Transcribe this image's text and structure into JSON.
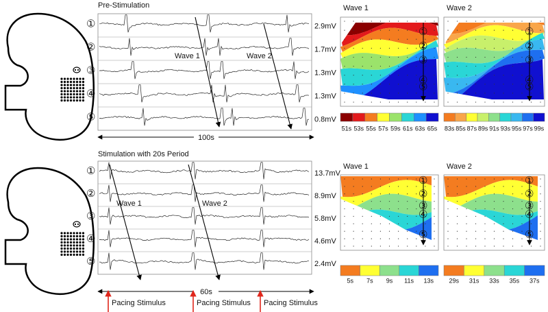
{
  "channels": [
    "①",
    "②",
    "③",
    "④",
    "⑤"
  ],
  "panels": [
    {
      "title": "Pre-Stimulation",
      "amplitudes": [
        "2.9mV",
        "1.7mV",
        "1.3mV",
        "1.3mV",
        "0.8mV"
      ],
      "wave_labels": [
        "Wave 1",
        "Wave 2"
      ],
      "time_scale": "100s",
      "maps": [
        {
          "title": "Wave 1",
          "legend": [
            "51s",
            "53s",
            "55s",
            "57s",
            "59s",
            "61s",
            "63s",
            "65s"
          ],
          "colors": [
            "#8b0000",
            "#e31a1c",
            "#f47c20",
            "#ffff33",
            "#9be36b",
            "#2ad6d6",
            "#1e90ff",
            "#1010d0"
          ]
        },
        {
          "title": "Wave 2",
          "legend": [
            "83s",
            "85s",
            "87s",
            "89s",
            "91s",
            "93s",
            "95s",
            "97s",
            "99s"
          ],
          "colors": [
            "#f47c20",
            "#f9a64a",
            "#ffff33",
            "#c8f06b",
            "#8de08c",
            "#2ad6d6",
            "#39b8f0",
            "#1e6ff0",
            "#1010d0"
          ]
        }
      ]
    },
    {
      "title": "Stimulation with 20s Period",
      "amplitudes": [
        "13.7mV",
        "8.9mV",
        "5.8mV",
        "4.6mV",
        "2.4mV"
      ],
      "wave_labels": [
        "Wave 1",
        "Wave 2"
      ],
      "time_scale": "60s",
      "stimulus_labels": [
        "Pacing Stimulus",
        "Pacing Stimulus",
        "Pacing Stimulus"
      ],
      "maps": [
        {
          "title": "Wave 1",
          "legend": [
            "5s",
            "7s",
            "9s",
            "11s",
            "13s"
          ],
          "colors": [
            "#f47c20",
            "#ffff33",
            "#8de08c",
            "#2ad6d6",
            "#1e6ff0"
          ]
        },
        {
          "title": "Wave 2",
          "legend": [
            "29s",
            "31s",
            "33s",
            "35s",
            "37s"
          ],
          "colors": [
            "#f47c20",
            "#ffff33",
            "#8de08c",
            "#2ad6d6",
            "#1e6ff0"
          ]
        }
      ]
    }
  ]
}
